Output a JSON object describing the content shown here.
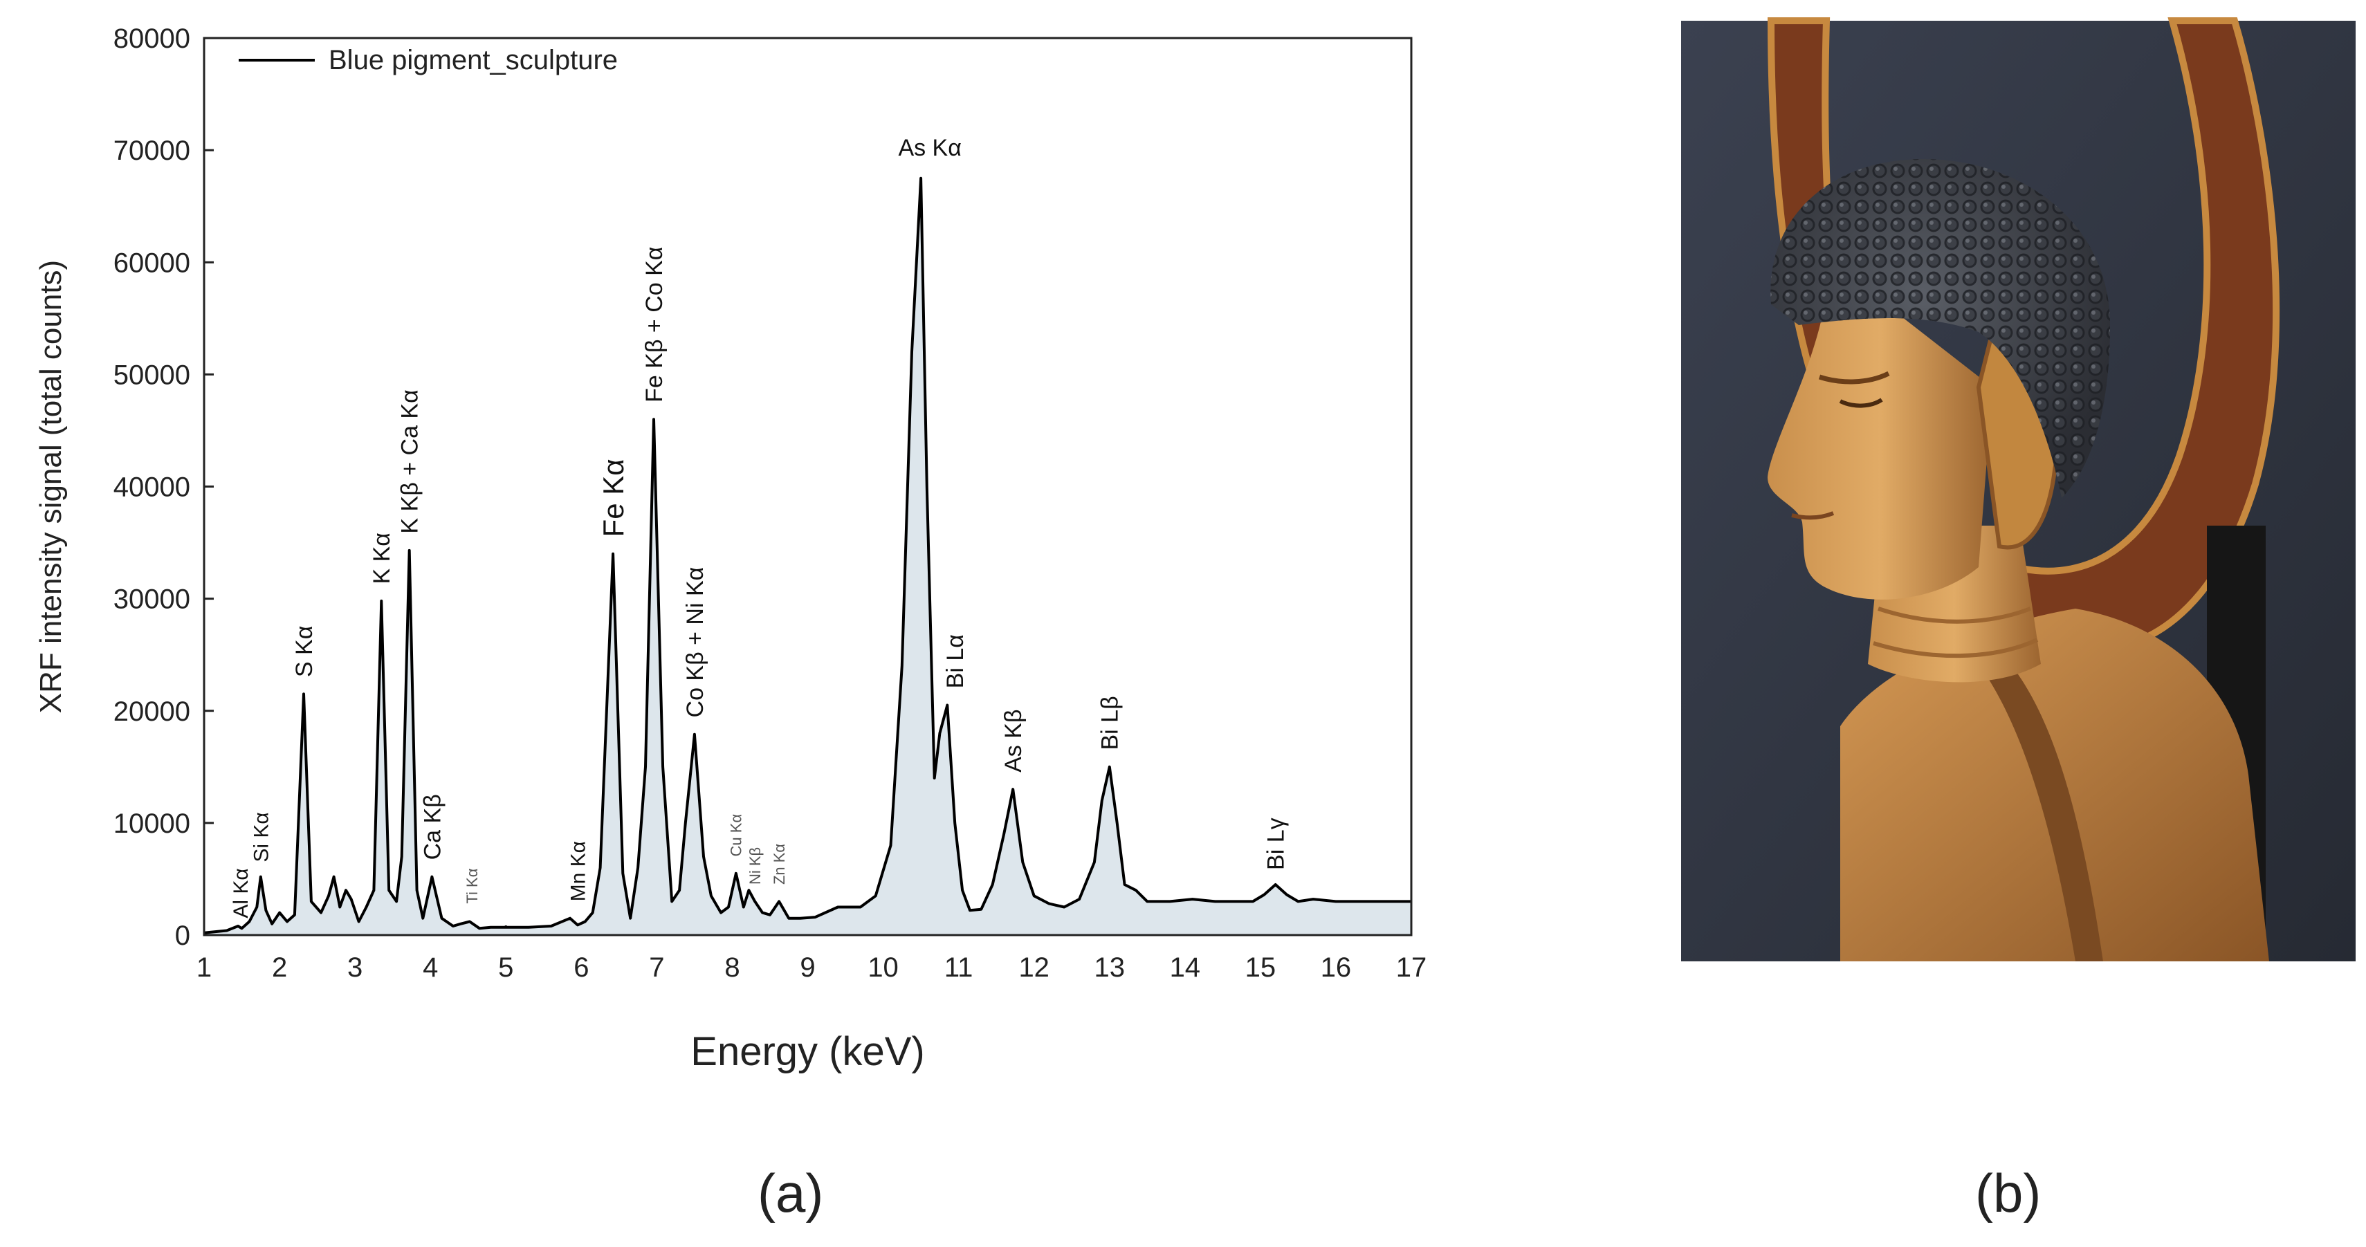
{
  "panels": {
    "a": "(a)",
    "b": "(b)"
  },
  "colors": {
    "line": "#000000",
    "fill": "#dde6ec",
    "axis": "#222222"
  },
  "chart_data": {
    "type": "line",
    "xlabel": "Energy (keV)",
    "ylabel": "XRF intensity signal (total counts)",
    "xlim": [
      1,
      17
    ],
    "ylim": [
      0,
      80000
    ],
    "xticks": [
      1,
      2,
      3,
      4,
      5,
      6,
      7,
      8,
      9,
      10,
      11,
      12,
      13,
      14,
      15,
      16,
      17
    ],
    "yticks": [
      0,
      10000,
      20000,
      30000,
      40000,
      50000,
      60000,
      70000,
      80000
    ],
    "legend": {
      "position": "top-left"
    },
    "series": [
      {
        "name": "Blue pigment_sculpture",
        "x": [
          1.0,
          1.3,
          1.45,
          1.5,
          1.6,
          1.7,
          1.75,
          1.82,
          1.9,
          2.0,
          2.1,
          2.2,
          2.32,
          2.42,
          2.55,
          2.65,
          2.72,
          2.8,
          2.88,
          2.95,
          3.05,
          3.15,
          3.25,
          3.35,
          3.45,
          3.55,
          3.62,
          3.72,
          3.82,
          3.9,
          4.02,
          4.15,
          4.3,
          4.4,
          4.52,
          4.65,
          4.8,
          5.0,
          5.3,
          5.6,
          5.85,
          5.95,
          6.05,
          6.15,
          6.25,
          6.42,
          6.55,
          6.65,
          6.75,
          6.85,
          6.96,
          7.08,
          7.2,
          7.3,
          7.38,
          7.5,
          7.62,
          7.72,
          7.85,
          7.95,
          8.05,
          8.15,
          8.22,
          8.3,
          8.4,
          8.5,
          8.62,
          8.75,
          8.9,
          9.1,
          9.4,
          9.7,
          9.9,
          10.1,
          10.25,
          10.38,
          10.5,
          10.58,
          10.68,
          10.75,
          10.85,
          10.95,
          11.05,
          11.15,
          11.3,
          11.45,
          11.6,
          11.72,
          11.85,
          12.0,
          12.2,
          12.4,
          12.6,
          12.8,
          12.9,
          13.0,
          13.1,
          13.2,
          13.35,
          13.5,
          13.8,
          14.1,
          14.4,
          14.7,
          14.9,
          15.05,
          15.2,
          15.35,
          15.5,
          15.7,
          16.0,
          16.3,
          16.6,
          17.0
        ],
        "y": [
          200,
          400,
          800,
          600,
          1200,
          2500,
          5200,
          2200,
          1000,
          2000,
          1200,
          1800,
          21500,
          3000,
          2000,
          3500,
          5200,
          2500,
          4000,
          3200,
          1200,
          2500,
          4000,
          29800,
          4000,
          3000,
          7000,
          34300,
          4000,
          1500,
          5200,
          1500,
          800,
          1000,
          1200,
          600,
          700,
          700,
          700,
          800,
          1500,
          900,
          1200,
          2000,
          6000,
          34000,
          5500,
          1500,
          6000,
          15000,
          46000,
          15000,
          3000,
          4000,
          10000,
          17900,
          7000,
          3500,
          2000,
          2500,
          5500,
          2500,
          4000,
          3000,
          2000,
          1800,
          3000,
          1500,
          1500,
          1600,
          2500,
          2500,
          3500,
          8000,
          24000,
          52000,
          67500,
          40000,
          14000,
          18000,
          20500,
          10000,
          4000,
          2200,
          2300,
          4500,
          9000,
          13000,
          6500,
          3500,
          2800,
          2500,
          3200,
          6500,
          12000,
          15000,
          10000,
          4500,
          4000,
          3000,
          3000,
          3200,
          3000,
          3000,
          3000,
          3600,
          4500,
          3600,
          3000,
          3200,
          3000,
          3000,
          3000,
          3000
        ]
      }
    ],
    "annotations": [
      {
        "text": "Al Kα",
        "x": 1.48,
        "y": 1500,
        "size": "s",
        "rot": -90
      },
      {
        "text": "Si Kα",
        "x": 1.75,
        "y": 6500,
        "size": "s",
        "rot": -90
      },
      {
        "text": "S Kα",
        "x": 2.32,
        "y": 23000,
        "size": "m",
        "rot": -90
      },
      {
        "text": "K Kα",
        "x": 3.35,
        "y": 31300,
        "size": "m",
        "rot": -90
      },
      {
        "text": "K Kβ + Ca Kα",
        "x": 3.72,
        "y": 35800,
        "size": "m",
        "rot": -90
      },
      {
        "text": "Ca Kβ",
        "x": 4.02,
        "y": 6700,
        "size": "m",
        "rot": -90
      },
      {
        "text": "Ti Kα",
        "x": 4.55,
        "y": 2800,
        "size": "xs",
        "rot": -90
      },
      {
        "text": "Mn Kα",
        "x": 5.95,
        "y": 3000,
        "size": "s",
        "rot": -90
      },
      {
        "text": "Fe Kα",
        "x": 6.42,
        "y": 35500,
        "size": "l",
        "rot": -90
      },
      {
        "text": "Fe Kβ + Co Kα",
        "x": 6.96,
        "y": 47500,
        "size": "m",
        "rot": -90
      },
      {
        "text": "Co Kβ + Ni Kα",
        "x": 7.5,
        "y": 19400,
        "size": "m",
        "rot": -90
      },
      {
        "text": "Cu Kα",
        "x": 8.05,
        "y": 7000,
        "size": "xs",
        "rot": -90
      },
      {
        "text": "Ni Kβ",
        "x": 8.3,
        "y": 4500,
        "size": "xs",
        "rot": -90
      },
      {
        "text": "Zn Kα",
        "x": 8.62,
        "y": 4500,
        "size": "xs",
        "rot": -90
      },
      {
        "text": "As Kα",
        "x": 10.62,
        "y": 69500,
        "size": "m",
        "rot": 0
      },
      {
        "text": "Bi Lα",
        "x": 10.95,
        "y": 22000,
        "size": "m",
        "rot": -90
      },
      {
        "text": "As Kβ",
        "x": 11.72,
        "y": 14500,
        "size": "m",
        "rot": -90
      },
      {
        "text": "Bi Lβ",
        "x": 13.0,
        "y": 16500,
        "size": "m",
        "rot": -90
      },
      {
        "text": "Bi Lγ",
        "x": 15.2,
        "y": 5800,
        "size": "m",
        "rot": -90
      }
    ]
  }
}
